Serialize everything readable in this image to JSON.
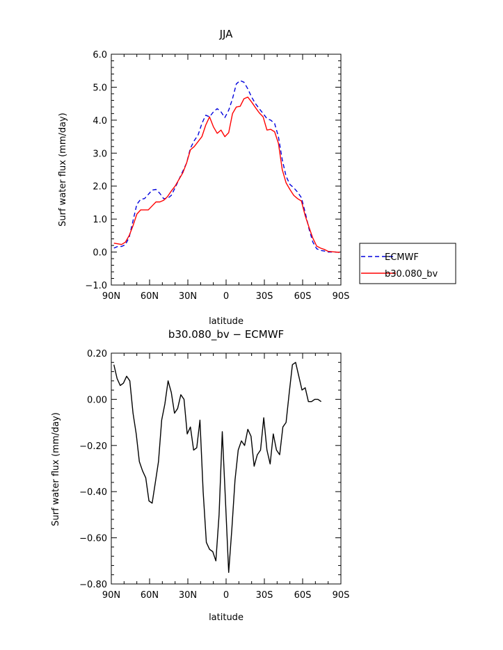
{
  "chart_data": [
    {
      "type": "line",
      "title": "JJA",
      "xlabel": "latitude",
      "ylabel": "Surf water flux (mm/day)",
      "xlim": [
        90,
        -90
      ],
      "ylim": [
        -1.0,
        6.0
      ],
      "x_ticks": [
        {
          "value": 90,
          "label": "90N"
        },
        {
          "value": 60,
          "label": "60N"
        },
        {
          "value": 30,
          "label": "30N"
        },
        {
          "value": 0,
          "label": "0"
        },
        {
          "value": -30,
          "label": "30S"
        },
        {
          "value": -60,
          "label": "60S"
        },
        {
          "value": -90,
          "label": "90S"
        }
      ],
      "y_ticks": [
        {
          "value": -1.0,
          "label": "−1.0"
        },
        {
          "value": 0.0,
          "label": "0.0"
        },
        {
          "value": 1.0,
          "label": "1.0"
        },
        {
          "value": 2.0,
          "label": "2.0"
        },
        {
          "value": 3.0,
          "label": "3.0"
        },
        {
          "value": 4.0,
          "label": "4.0"
        },
        {
          "value": 5.0,
          "label": "5.0"
        },
        {
          "value": 6.0,
          "label": "6.0"
        }
      ],
      "legend_position": "right",
      "series": [
        {
          "name": "ECMWF",
          "color": "#0000dd",
          "dash": true,
          "points": [
            [
              88,
              0.12
            ],
            [
              85,
              0.17
            ],
            [
              82,
              0.17
            ],
            [
              79,
              0.22
            ],
            [
              76,
              0.45
            ],
            [
              73,
              0.95
            ],
            [
              70,
              1.45
            ],
            [
              67,
              1.6
            ],
            [
              64,
              1.62
            ],
            [
              61,
              1.75
            ],
            [
              58,
              1.88
            ],
            [
              55,
              1.9
            ],
            [
              52,
              1.78
            ],
            [
              49,
              1.62
            ],
            [
              46,
              1.62
            ],
            [
              43,
              1.72
            ],
            [
              40,
              1.95
            ],
            [
              37,
              2.2
            ],
            [
              34,
              2.45
            ],
            [
              31,
              2.7
            ],
            [
              28,
              3.15
            ],
            [
              25,
              3.38
            ],
            [
              22,
              3.55
            ],
            [
              19,
              3.9
            ],
            [
              16,
              4.15
            ],
            [
              13,
              4.1
            ],
            [
              10,
              4.25
            ],
            [
              7,
              4.35
            ],
            [
              4,
              4.25
            ],
            [
              1,
              4.08
            ],
            [
              -2,
              4.3
            ],
            [
              -5,
              4.65
            ],
            [
              -8,
              5.1
            ],
            [
              -11,
              5.2
            ],
            [
              -14,
              5.15
            ],
            [
              -17,
              4.95
            ],
            [
              -20,
              4.7
            ],
            [
              -23,
              4.5
            ],
            [
              -26,
              4.35
            ],
            [
              -29,
              4.2
            ],
            [
              -32,
              4.05
            ],
            [
              -35,
              4.0
            ],
            [
              -38,
              3.9
            ],
            [
              -41,
              3.5
            ],
            [
              -44,
              2.8
            ],
            [
              -47,
              2.3
            ],
            [
              -50,
              2.05
            ],
            [
              -53,
              1.95
            ],
            [
              -56,
              1.82
            ],
            [
              -59,
              1.65
            ],
            [
              -62,
              1.2
            ],
            [
              -65,
              0.7
            ],
            [
              -68,
              0.3
            ],
            [
              -71,
              0.1
            ],
            [
              -74,
              0.05
            ],
            [
              -77,
              0.03
            ],
            [
              -80,
              0.0
            ],
            [
              -83,
              0.0
            ],
            [
              -86,
              0.0
            ],
            [
              -89,
              -0.01
            ]
          ]
        },
        {
          "name": "b30.080_bv",
          "color": "#ff0000",
          "dash": false,
          "points": [
            [
              88,
              0.27
            ],
            [
              85,
              0.25
            ],
            [
              82,
              0.23
            ],
            [
              79,
              0.3
            ],
            [
              76,
              0.5
            ],
            [
              73,
              0.8
            ],
            [
              70,
              1.15
            ],
            [
              67,
              1.28
            ],
            [
              64,
              1.28
            ],
            [
              61,
              1.28
            ],
            [
              58,
              1.4
            ],
            [
              55,
              1.52
            ],
            [
              52,
              1.52
            ],
            [
              49,
              1.57
            ],
            [
              46,
              1.68
            ],
            [
              43,
              1.85
            ],
            [
              40,
              2.0
            ],
            [
              37,
              2.2
            ],
            [
              34,
              2.4
            ],
            [
              31,
              2.7
            ],
            [
              28,
              3.1
            ],
            [
              25,
              3.2
            ],
            [
              22,
              3.35
            ],
            [
              19,
              3.5
            ],
            [
              16,
              3.85
            ],
            [
              13,
              4.1
            ],
            [
              10,
              3.8
            ],
            [
              7,
              3.6
            ],
            [
              4,
              3.7
            ],
            [
              1,
              3.5
            ],
            [
              -2,
              3.62
            ],
            [
              -5,
              4.2
            ],
            [
              -8,
              4.4
            ],
            [
              -11,
              4.42
            ],
            [
              -14,
              4.65
            ],
            [
              -17,
              4.7
            ],
            [
              -20,
              4.55
            ],
            [
              -23,
              4.38
            ],
            [
              -26,
              4.22
            ],
            [
              -29,
              4.1
            ],
            [
              -32,
              3.7
            ],
            [
              -35,
              3.72
            ],
            [
              -38,
              3.65
            ],
            [
              -41,
              3.3
            ],
            [
              -44,
              2.5
            ],
            [
              -47,
              2.1
            ],
            [
              -50,
              1.9
            ],
            [
              -53,
              1.72
            ],
            [
              -56,
              1.62
            ],
            [
              -59,
              1.55
            ],
            [
              -62,
              1.1
            ],
            [
              -65,
              0.75
            ],
            [
              -68,
              0.42
            ],
            [
              -71,
              0.18
            ],
            [
              -74,
              0.12
            ],
            [
              -77,
              0.08
            ],
            [
              -80,
              0.02
            ],
            [
              -83,
              0.01
            ],
            [
              -86,
              0.0
            ],
            [
              -89,
              -0.01
            ]
          ]
        }
      ]
    },
    {
      "type": "line",
      "title": "b30.080_bv − ECMWF",
      "xlabel": "latitude",
      "ylabel": "Surf water flux (mm/day)",
      "xlim": [
        90,
        -90
      ],
      "ylim": [
        -0.8,
        0.2
      ],
      "x_ticks": [
        {
          "value": 90,
          "label": "90N"
        },
        {
          "value": 60,
          "label": "60N"
        },
        {
          "value": 30,
          "label": "30N"
        },
        {
          "value": 0,
          "label": "0"
        },
        {
          "value": -30,
          "label": "30S"
        },
        {
          "value": -60,
          "label": "60S"
        },
        {
          "value": -90,
          "label": "90S"
        }
      ],
      "y_ticks": [
        {
          "value": -0.8,
          "label": "−0.80"
        },
        {
          "value": -0.6,
          "label": "−0.60"
        },
        {
          "value": -0.4,
          "label": "−0.40"
        },
        {
          "value": -0.2,
          "label": "−0.20"
        },
        {
          "value": 0.0,
          "label": "0.00"
        },
        {
          "value": 0.2,
          "label": "0.20"
        }
      ],
      "series": [
        {
          "color": "#000000",
          "dash": false,
          "points": [
            [
              88,
              0.15
            ],
            [
              85.5,
              0.09
            ],
            [
              83,
              0.06
            ],
            [
              80.5,
              0.07
            ],
            [
              78,
              0.1
            ],
            [
              75.5,
              0.08
            ],
            [
              73,
              -0.06
            ],
            [
              70.5,
              -0.15
            ],
            [
              68,
              -0.27
            ],
            [
              65.5,
              -0.31
            ],
            [
              63,
              -0.34
            ],
            [
              60.5,
              -0.44
            ],
            [
              58,
              -0.45
            ],
            [
              55.5,
              -0.36
            ],
            [
              53,
              -0.27
            ],
            [
              50.5,
              -0.09
            ],
            [
              48,
              -0.02
            ],
            [
              45.5,
              0.08
            ],
            [
              43,
              0.03
            ],
            [
              40.5,
              -0.06
            ],
            [
              38,
              -0.04
            ],
            [
              35.5,
              0.02
            ],
            [
              33,
              0.0
            ],
            [
              30.5,
              -0.15
            ],
            [
              28,
              -0.12
            ],
            [
              25.5,
              -0.22
            ],
            [
              23,
              -0.21
            ],
            [
              20.5,
              -0.09
            ],
            [
              18,
              -0.4
            ],
            [
              15.5,
              -0.62
            ],
            [
              13,
              -0.65
            ],
            [
              10.5,
              -0.66
            ],
            [
              8,
              -0.7
            ],
            [
              5.5,
              -0.5
            ],
            [
              3,
              -0.14
            ],
            [
              0.5,
              -0.44
            ],
            [
              -2,
              -0.75
            ],
            [
              -4.5,
              -0.56
            ],
            [
              -7,
              -0.35
            ],
            [
              -9.5,
              -0.22
            ],
            [
              -12,
              -0.18
            ],
            [
              -14.5,
              -0.2
            ],
            [
              -17,
              -0.13
            ],
            [
              -19.5,
              -0.16
            ],
            [
              -22,
              -0.29
            ],
            [
              -24.5,
              -0.24
            ],
            [
              -27,
              -0.22
            ],
            [
              -29.5,
              -0.08
            ],
            [
              -32,
              -0.22
            ],
            [
              -34.5,
              -0.28
            ],
            [
              -37,
              -0.15
            ],
            [
              -39.5,
              -0.22
            ],
            [
              -42,
              -0.24
            ],
            [
              -44.5,
              -0.12
            ],
            [
              -47,
              -0.1
            ],
            [
              -49.5,
              0.03
            ],
            [
              -52,
              0.15
            ],
            [
              -54.5,
              0.16
            ],
            [
              -57,
              0.1
            ],
            [
              -59.5,
              0.04
            ],
            [
              -62,
              0.05
            ],
            [
              -64.5,
              -0.01
            ],
            [
              -67,
              -0.01
            ],
            [
              -69.5,
              0.0
            ],
            [
              -72,
              0.0
            ],
            [
              -74.5,
              -0.01
            ]
          ]
        }
      ]
    }
  ]
}
